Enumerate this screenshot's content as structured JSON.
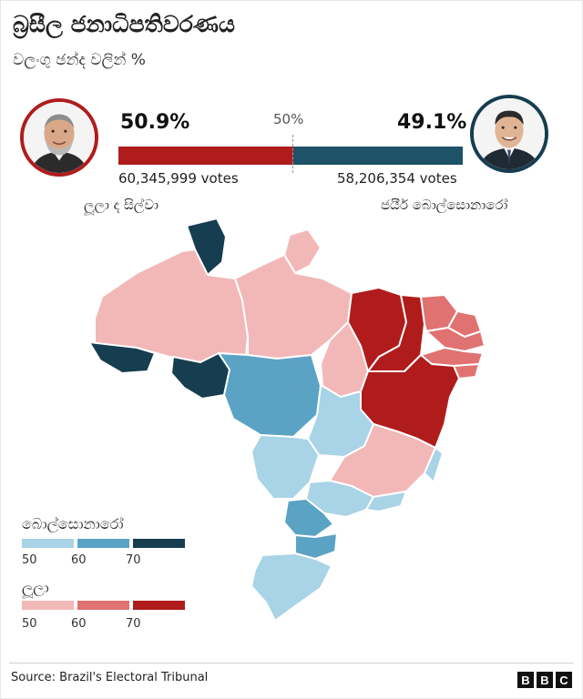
{
  "title": "බ්‍රසීල ජනාධිපතිවරණය",
  "subtitle": "වලංගු ඡන්ද වලින් %",
  "midpoint_label": "50%",
  "colors": {
    "lula_main": "#b01c1c",
    "bolsonaro_main": "#1e5268",
    "lula_scale": [
      "#f2b8b8",
      "#e07272",
      "#b01c1c"
    ],
    "bolsonaro_scale": [
      "#a9d3e6",
      "#5ba3c4",
      "#163d50"
    ]
  },
  "candidates": {
    "lula": {
      "name": "ලූලා ද සිල්වා",
      "percent_label": "50.9%",
      "share": 50.9,
      "votes_label": "60,345,999 votes",
      "icon": "lula-portrait-icon"
    },
    "bolsonaro": {
      "name": "ජයීර් බොල්සොනාරෝ",
      "percent_label": "49.1%",
      "share": 49.1,
      "votes_label": "58,206,354 votes",
      "icon": "bolsonaro-portrait-icon"
    }
  },
  "legend": {
    "bolsonaro": {
      "title": "බොල්සොනාරෝ",
      "ticks": [
        "50",
        "60",
        "70"
      ]
    },
    "lula": {
      "title": "ලූලා",
      "ticks": [
        "50",
        "60",
        "70"
      ]
    }
  },
  "chart_data": {
    "type": "choropleth",
    "title": "බ්‍රසීල ජනාධිපතිවරණය",
    "subtitle": "වලංගු ඡන්ද වලින් %",
    "national": [
      {
        "name": "ලූලා ද සිල්වා",
        "percent": 50.9,
        "votes": 60345999
      },
      {
        "name": "ජයීර් බොල්සොනාරෝ",
        "percent": 49.1,
        "votes": 58206354
      }
    ],
    "legend_bins": [
      50,
      60,
      70
    ],
    "states": [
      {
        "winner": "lula",
        "bin": 1
      },
      {
        "winner": "lula",
        "bin": 1
      },
      {
        "winner": "lula",
        "bin": 1
      },
      {
        "winner": "lula",
        "bin": 1
      },
      {
        "winner": "lula",
        "bin": 3
      },
      {
        "winner": "lula",
        "bin": 3
      },
      {
        "winner": "lula",
        "bin": 2
      },
      {
        "winner": "lula",
        "bin": 2
      },
      {
        "winner": "lula",
        "bin": 2
      },
      {
        "winner": "lula",
        "bin": 2
      },
      {
        "winner": "lula",
        "bin": 2
      },
      {
        "winner": "lula",
        "bin": 3
      },
      {
        "winner": "lula",
        "bin": 1
      },
      {
        "winner": "bolsonaro",
        "bin": 3
      },
      {
        "winner": "bolsonaro",
        "bin": 3
      },
      {
        "winner": "bolsonaro",
        "bin": 3
      },
      {
        "winner": "bolsonaro",
        "bin": 2
      },
      {
        "winner": "bolsonaro",
        "bin": 1
      },
      {
        "winner": "bolsonaro",
        "bin": 1
      },
      {
        "winner": "bolsonaro",
        "bin": 1
      },
      {
        "winner": "bolsonaro",
        "bin": 1
      },
      {
        "winner": "bolsonaro",
        "bin": 1
      },
      {
        "winner": "bolsonaro",
        "bin": 1
      },
      {
        "winner": "bolsonaro",
        "bin": 2
      },
      {
        "winner": "bolsonaro",
        "bin": 2
      },
      {
        "winner": "bolsonaro",
        "bin": 1
      },
      {
        "winner": "bolsonaro",
        "bin": 1
      }
    ]
  },
  "footer": {
    "source": "Source: Brazil's Electoral Tribunal",
    "logo": [
      "B",
      "B",
      "C"
    ]
  }
}
